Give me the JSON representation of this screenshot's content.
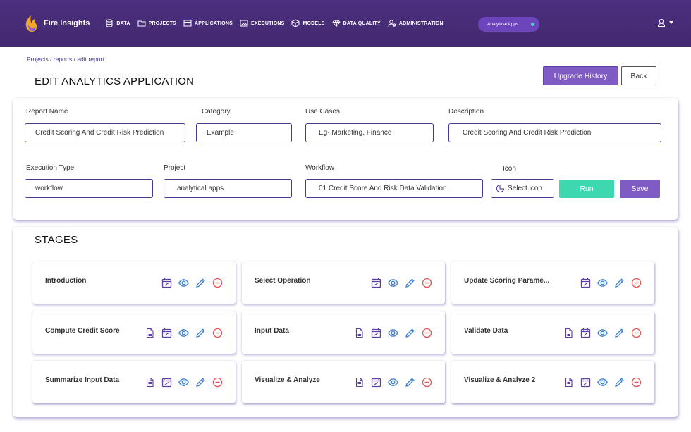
{
  "app": {
    "name": "Fire Insights"
  },
  "nav": {
    "items": [
      {
        "label": "DATA",
        "icon": "database-icon"
      },
      {
        "label": "PROJECTS",
        "icon": "folder-icon"
      },
      {
        "label": "APPLICATIONS",
        "icon": "window-icon"
      },
      {
        "label": "EXECUTIONS",
        "icon": "image-icon"
      },
      {
        "label": "MODELS",
        "icon": "cube-icon"
      },
      {
        "label": "DATA QUALITY",
        "icon": "diamond-icon"
      },
      {
        "label": "ADMINISTRATION",
        "icon": "users-icon"
      }
    ],
    "apps_pill": "Analytical Apps",
    "user_icon": "user-icon"
  },
  "breadcrumb": "Projects / reports / edit report",
  "page_title": "EDIT ANALYTICS APPLICATION",
  "buttons": {
    "upgrade_history": "Upgrade History",
    "back": "Back",
    "run": "Run",
    "save": "Save"
  },
  "form": {
    "report_name": {
      "label": "Report Name",
      "value": "Credit Scoring And Credit Risk Prediction"
    },
    "category": {
      "label": "Category",
      "value": "Example"
    },
    "use_cases": {
      "label": "Use Cases",
      "value": "Eg- Marketing, Finance"
    },
    "description": {
      "label": "Description",
      "value": "Credit Scoring And Credit Risk Prediction"
    },
    "execution_type": {
      "label": "Execution Type",
      "value": "workflow"
    },
    "project": {
      "label": "Project",
      "value": "analytical apps"
    },
    "workflow": {
      "label": "Workflow",
      "value": "01 Credit Score And Risk Data Validation"
    },
    "icon": {
      "label": "Icon",
      "button": "Select icon"
    }
  },
  "stages": {
    "title": "STAGES",
    "items": [
      {
        "name": "Introduction",
        "has_doc": false
      },
      {
        "name": "Select Operation",
        "has_doc": false
      },
      {
        "name": "Update Scoring Parame...",
        "has_doc": false
      },
      {
        "name": "Compute Credit Score",
        "has_doc": true
      },
      {
        "name": "Input Data",
        "has_doc": true
      },
      {
        "name": "Validate Data",
        "has_doc": true
      },
      {
        "name": "Summarize Input Data",
        "has_doc": true
      },
      {
        "name": "Visualize & Analyze",
        "has_doc": true
      },
      {
        "name": "Visualize & Analyze 2",
        "has_doc": true
      }
    ]
  },
  "colors": {
    "nav_bg": "#4a2e7b",
    "primary": "#7e5cc4",
    "run": "#3dd7b0",
    "icon_purple": "#5a3ea0",
    "icon_blue": "#3b7fd0",
    "icon_red": "#e05555"
  }
}
